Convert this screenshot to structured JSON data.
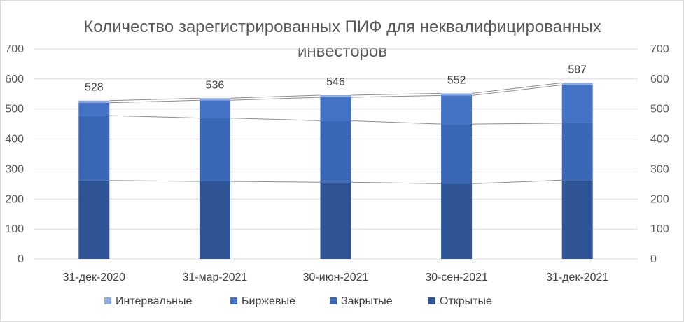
{
  "chart_data": {
    "type": "bar",
    "stacked": true,
    "title_lines": [
      "Количество зарегистрированных ПИФ для неквалифицированных",
      "инвесторов"
    ],
    "categories": [
      "31-дек-2020",
      "31-мар-2021",
      "30-июн-2021",
      "30-сен-2021",
      "31-дек-2021"
    ],
    "series": [
      {
        "name": "Открытые",
        "color": "#2f5597",
        "values": [
          262,
          259,
          256,
          251,
          263
        ]
      },
      {
        "name": "Закрытые",
        "color": "#3a67b6",
        "values": [
          216,
          211,
          205,
          199,
          190
        ]
      },
      {
        "name": "Биржевые",
        "color": "#4472c4",
        "values": [
          43,
          59,
          78,
          95,
          127
        ]
      },
      {
        "name": "Интервальные",
        "color": "#8faadc",
        "values": [
          7,
          7,
          7,
          7,
          7
        ]
      }
    ],
    "totals": [
      "528",
      "536",
      "546",
      "552",
      "587"
    ],
    "ylim": [
      0,
      700
    ],
    "yticks": [
      "0",
      "100",
      "200",
      "300",
      "400",
      "500",
      "600",
      "700"
    ],
    "secondary_yticks": [
      "0",
      "100",
      "200",
      "300",
      "400",
      "500",
      "600",
      "700"
    ],
    "grid": true,
    "series_lines": true,
    "legend_position": "bottom",
    "xlabel": "",
    "ylabel": ""
  }
}
